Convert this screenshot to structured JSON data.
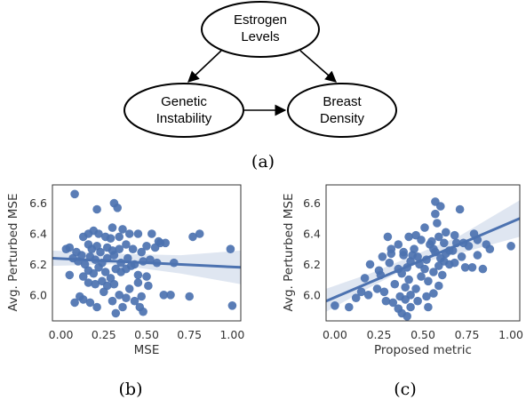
{
  "figure": {
    "captions": {
      "a": "(a)",
      "b": "(b)",
      "c": "(c)"
    },
    "diagram": {
      "nodes": [
        {
          "id": "estrogen",
          "lines": [
            "Estrogen",
            "Levels"
          ]
        },
        {
          "id": "genetic",
          "lines": [
            "Genetic",
            "Instability"
          ]
        },
        {
          "id": "breast",
          "lines": [
            "Breast",
            "Density"
          ]
        }
      ],
      "edges": [
        {
          "from": "estrogen",
          "to": "genetic"
        },
        {
          "from": "estrogen",
          "to": "breast"
        },
        {
          "from": "genetic",
          "to": "breast"
        }
      ]
    },
    "colors": {
      "points": "#4c72b0",
      "line": "#4c72b0",
      "band": "#4c72b0",
      "axis": "#333333"
    }
  },
  "chart_data": [
    {
      "type": "scatter",
      "panel": "(b)",
      "xlabel": "MSE",
      "ylabel": "Avg. Perturbed MSE",
      "xlim": [
        -0.05,
        1.05
      ],
      "ylim": [
        5.83,
        6.72
      ],
      "xticks": [
        "0.00",
        "0.25",
        "0.50",
        "0.75",
        "1.00"
      ],
      "xtick_values": [
        0,
        0.25,
        0.5,
        0.75,
        1.0
      ],
      "yticks": [
        "6.0",
        "6.2",
        "6.4",
        "6.6"
      ],
      "ytick_values": [
        6.0,
        6.2,
        6.4,
        6.6
      ],
      "grid": false,
      "regression": {
        "start": [
          -0.05,
          6.24
        ],
        "end": [
          1.05,
          6.18
        ]
      },
      "confidence_band": {
        "x": [
          -0.05,
          0.3,
          0.7,
          1.05
        ],
        "lower": [
          6.19,
          6.2,
          6.14,
          6.07
        ],
        "upper": [
          6.29,
          6.27,
          6.26,
          6.29
        ]
      },
      "points": [
        [
          0.08,
          6.66
        ],
        [
          0.21,
          6.56
        ],
        [
          0.31,
          6.6
        ],
        [
          0.33,
          6.57
        ],
        [
          0.3,
          6.44
        ],
        [
          0.36,
          6.43
        ],
        [
          0.16,
          6.4
        ],
        [
          0.19,
          6.42
        ],
        [
          0.22,
          6.4
        ],
        [
          0.13,
          6.38
        ],
        [
          0.26,
          6.38
        ],
        [
          0.29,
          6.37
        ],
        [
          0.34,
          6.38
        ],
        [
          0.4,
          6.4
        ],
        [
          0.45,
          6.4
        ],
        [
          0.53,
          6.4
        ],
        [
          0.57,
          6.35
        ],
        [
          0.61,
          6.34
        ],
        [
          0.77,
          6.38
        ],
        [
          0.81,
          6.4
        ],
        [
          0.05,
          6.31
        ],
        [
          0.09,
          6.28
        ],
        [
          0.12,
          6.26
        ],
        [
          0.16,
          6.33
        ],
        [
          0.18,
          6.3
        ],
        [
          0.21,
          6.32
        ],
        [
          0.23,
          6.28
        ],
        [
          0.27,
          6.31
        ],
        [
          0.3,
          6.29
        ],
        [
          0.34,
          6.3
        ],
        [
          0.38,
          6.33
        ],
        [
          0.42,
          6.3
        ],
        [
          0.47,
          6.28
        ],
        [
          0.5,
          6.32
        ],
        [
          0.55,
          6.31
        ],
        [
          0.58,
          6.34
        ],
        [
          0.99,
          6.3
        ],
        [
          0.03,
          6.3
        ],
        [
          0.07,
          6.24
        ],
        [
          0.1,
          6.22
        ],
        [
          0.14,
          6.2
        ],
        [
          0.17,
          6.25
        ],
        [
          0.2,
          6.23
        ],
        [
          0.24,
          6.21
        ],
        [
          0.27,
          6.24
        ],
        [
          0.31,
          6.26
        ],
        [
          0.35,
          6.21
        ],
        [
          0.39,
          6.24
        ],
        [
          0.43,
          6.2
        ],
        [
          0.48,
          6.22
        ],
        [
          0.52,
          6.23
        ],
        [
          0.56,
          6.21
        ],
        [
          0.66,
          6.21
        ],
        [
          0.05,
          6.13
        ],
        [
          0.13,
          6.12
        ],
        [
          0.16,
          6.16
        ],
        [
          0.19,
          6.14
        ],
        [
          0.22,
          6.18
        ],
        [
          0.26,
          6.15
        ],
        [
          0.29,
          6.11
        ],
        [
          0.32,
          6.17
        ],
        [
          0.35,
          6.15
        ],
        [
          0.38,
          6.17
        ],
        [
          0.41,
          6.19
        ],
        [
          0.45,
          6.13
        ],
        [
          0.5,
          6.12
        ],
        [
          0.16,
          6.08
        ],
        [
          0.2,
          6.07
        ],
        [
          0.24,
          6.09
        ],
        [
          0.27,
          6.06
        ],
        [
          0.31,
          6.07
        ],
        [
          0.45,
          6.08
        ],
        [
          0.4,
          6.04
        ],
        [
          0.11,
          5.99
        ],
        [
          0.25,
          6.02
        ],
        [
          0.34,
          6.0
        ],
        [
          0.38,
          5.98
        ],
        [
          0.47,
          5.99
        ],
        [
          0.6,
          6.0
        ],
        [
          0.64,
          6.0
        ],
        [
          0.75,
          5.99
        ],
        [
          0.13,
          5.97
        ],
        [
          0.17,
          5.95
        ],
        [
          0.3,
          5.96
        ],
        [
          0.43,
          5.96
        ],
        [
          0.08,
          5.95
        ],
        [
          0.21,
          5.92
        ],
        [
          0.32,
          5.88
        ],
        [
          0.46,
          5.92
        ],
        [
          0.48,
          5.89
        ],
        [
          0.36,
          5.92
        ],
        [
          0.51,
          6.06
        ],
        [
          1.0,
          5.93
        ]
      ]
    },
    {
      "type": "scatter",
      "panel": "(c)",
      "xlabel": "Proposed metric",
      "ylabel": "Avg. Perturbed MSE",
      "xlim": [
        -0.05,
        1.05
      ],
      "ylim": [
        5.83,
        6.72
      ],
      "xticks": [
        "0.00",
        "0.25",
        "0.50",
        "0.75",
        "1.00"
      ],
      "xtick_values": [
        0,
        0.25,
        0.5,
        0.75,
        1.0
      ],
      "yticks": [
        "6.0",
        "6.2",
        "6.4",
        "6.6"
      ],
      "ytick_values": [
        6.0,
        6.2,
        6.4,
        6.6
      ],
      "grid": false,
      "regression": {
        "start": [
          -0.05,
          5.96
        ],
        "end": [
          1.05,
          6.5
        ]
      },
      "confidence_band": {
        "x": [
          -0.05,
          0.2,
          0.45,
          0.7,
          1.05
        ],
        "lower": [
          5.89,
          6.05,
          6.2,
          6.27,
          6.38
        ],
        "upper": [
          6.04,
          6.14,
          6.26,
          6.38,
          6.62
        ]
      },
      "points": [
        [
          0.57,
          6.61
        ],
        [
          0.6,
          6.58
        ],
        [
          0.57,
          6.53
        ],
        [
          0.71,
          6.56
        ],
        [
          0.58,
          6.47
        ],
        [
          0.51,
          6.44
        ],
        [
          0.3,
          6.38
        ],
        [
          0.42,
          6.38
        ],
        [
          0.63,
          6.41
        ],
        [
          0.79,
          6.4
        ],
        [
          0.49,
          6.36
        ],
        [
          0.59,
          6.38
        ],
        [
          0.68,
          6.39
        ],
        [
          0.81,
          6.36
        ],
        [
          0.36,
          6.33
        ],
        [
          0.54,
          6.33
        ],
        [
          0.62,
          6.34
        ],
        [
          0.73,
          6.34
        ],
        [
          0.86,
          6.33
        ],
        [
          0.32,
          6.3
        ],
        [
          0.45,
          6.3
        ],
        [
          0.56,
          6.3
        ],
        [
          0.67,
          6.29
        ],
        [
          0.76,
          6.32
        ],
        [
          0.88,
          6.3
        ],
        [
          1.0,
          6.32
        ],
        [
          0.27,
          6.25
        ],
        [
          0.39,
          6.26
        ],
        [
          0.47,
          6.25
        ],
        [
          0.57,
          6.28
        ],
        [
          0.63,
          6.27
        ],
        [
          0.72,
          6.25
        ],
        [
          0.2,
          6.2
        ],
        [
          0.31,
          6.21
        ],
        [
          0.43,
          6.22
        ],
        [
          0.48,
          6.2
        ],
        [
          0.52,
          6.23
        ],
        [
          0.68,
          6.21
        ],
        [
          0.25,
          6.16
        ],
        [
          0.36,
          6.17
        ],
        [
          0.41,
          6.18
        ],
        [
          0.51,
          6.17
        ],
        [
          0.59,
          6.19
        ],
        [
          0.65,
          6.2
        ],
        [
          0.74,
          6.18
        ],
        [
          0.84,
          6.17
        ],
        [
          0.17,
          6.11
        ],
        [
          0.26,
          6.13
        ],
        [
          0.38,
          6.14
        ],
        [
          0.42,
          6.1
        ],
        [
          0.49,
          6.12
        ],
        [
          0.56,
          6.15
        ],
        [
          0.61,
          6.13
        ],
        [
          0.34,
          6.07
        ],
        [
          0.4,
          6.05
        ],
        [
          0.53,
          6.09
        ],
        [
          0.46,
          6.04
        ],
        [
          0.15,
          6.02
        ],
        [
          0.19,
          6.0
        ],
        [
          0.28,
          6.02
        ],
        [
          0.37,
          5.99
        ],
        [
          0.43,
          6.0
        ],
        [
          0.52,
          5.99
        ],
        [
          0.56,
          6.01
        ],
        [
          0.12,
          5.98
        ],
        [
          0.29,
          5.96
        ],
        [
          0.4,
          5.97
        ],
        [
          0.47,
          5.96
        ],
        [
          0.33,
          5.95
        ],
        [
          0.36,
          5.91
        ],
        [
          0.38,
          5.88
        ],
        [
          0.43,
          5.92
        ],
        [
          0.53,
          5.92
        ],
        [
          0.41,
          5.86
        ],
        [
          0.0,
          5.93
        ],
        [
          0.08,
          5.92
        ],
        [
          0.24,
          6.04
        ],
        [
          0.32,
          6.27
        ],
        [
          0.46,
          6.39
        ],
        [
          0.39,
          6.28
        ],
        [
          0.62,
          6.22
        ],
        [
          0.81,
          6.26
        ],
        [
          0.59,
          6.06
        ],
        [
          0.78,
          6.18
        ],
        [
          0.69,
          6.34
        ],
        [
          0.65,
          6.29
        ],
        [
          0.55,
          6.35
        ],
        [
          0.44,
          6.26
        ],
        [
          0.6,
          6.24
        ]
      ]
    }
  ]
}
